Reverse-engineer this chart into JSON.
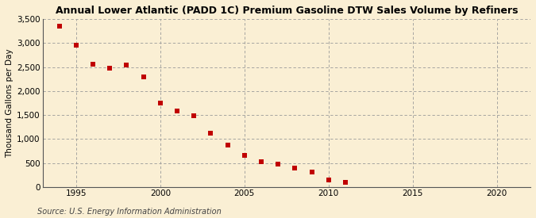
{
  "title": "Annual Lower Atlantic (PADD 1C) Premium Gasoline DTW Sales Volume by Refiners",
  "ylabel": "Thousand Gallons per Day",
  "source": "Source: U.S. Energy Information Administration",
  "background_color": "#faefd4",
  "plot_background_color": "#faefd4",
  "marker_color": "#c00000",
  "years": [
    1994,
    1995,
    1996,
    1997,
    1998,
    1999,
    2000,
    2001,
    2002,
    2003,
    2004,
    2005,
    2006,
    2007,
    2008,
    2009,
    2010,
    2011
  ],
  "values": [
    3350,
    2950,
    2560,
    2470,
    2540,
    2300,
    1750,
    1580,
    1490,
    1130,
    870,
    660,
    530,
    480,
    400,
    310,
    150,
    100
  ],
  "xlim": [
    1993,
    2022
  ],
  "ylim": [
    0,
    3500
  ],
  "xticks": [
    1995,
    2000,
    2005,
    2010,
    2015,
    2020
  ],
  "yticks": [
    0,
    500,
    1000,
    1500,
    2000,
    2500,
    3000,
    3500
  ],
  "ytick_labels": [
    "0",
    "500",
    "1,000",
    "1,500",
    "2,000",
    "2,500",
    "3,000",
    "3,500"
  ],
  "grid_color": "#999999",
  "title_fontsize": 9,
  "label_fontsize": 7.5,
  "tick_fontsize": 7.5,
  "source_fontsize": 7
}
